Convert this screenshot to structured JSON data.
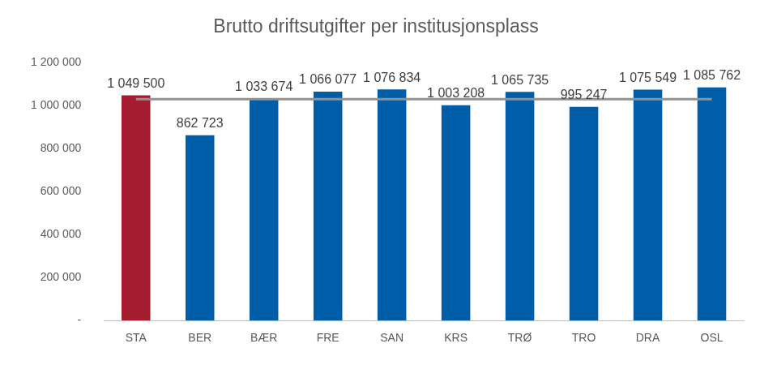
{
  "chart_data": {
    "type": "bar",
    "title": "Brutto driftsutgifter per institusjonsplass",
    "categories": [
      "STA",
      "BER",
      "BÆR",
      "FRE",
      "SAN",
      "KRS",
      "TRØ",
      "TRO",
      "DRA",
      "OSL"
    ],
    "values": [
      1049500,
      862723,
      1033674,
      1066077,
      1076834,
      1003208,
      1065735,
      995247,
      1075549,
      1085762
    ],
    "value_labels": [
      "1 049 500",
      "862 723",
      "1 033 674",
      "1 066 077",
      "1 076 834",
      "1 003 208",
      "1 065 735",
      "995 247",
      "1 075 549",
      "1 085 762"
    ],
    "colors": [
      "#a51c30",
      "#005ea8",
      "#005ea8",
      "#005ea8",
      "#005ea8",
      "#005ea8",
      "#005ea8",
      "#005ea8",
      "#005ea8",
      "#005ea8"
    ],
    "reference_line": 1031431,
    "ylim": [
      0,
      1200000
    ],
    "yticks": [
      {
        "value": 0,
        "label": "-"
      },
      {
        "value": 200000,
        "label": "200 000"
      },
      {
        "value": 400000,
        "label": "400 000"
      },
      {
        "value": 600000,
        "label": "600 000"
      },
      {
        "value": 800000,
        "label": "800 000"
      },
      {
        "value": 1000000,
        "label": "1 000 000"
      },
      {
        "value": 1200000,
        "label": "1 200 000"
      }
    ],
    "grid": false,
    "data_labels": true
  }
}
